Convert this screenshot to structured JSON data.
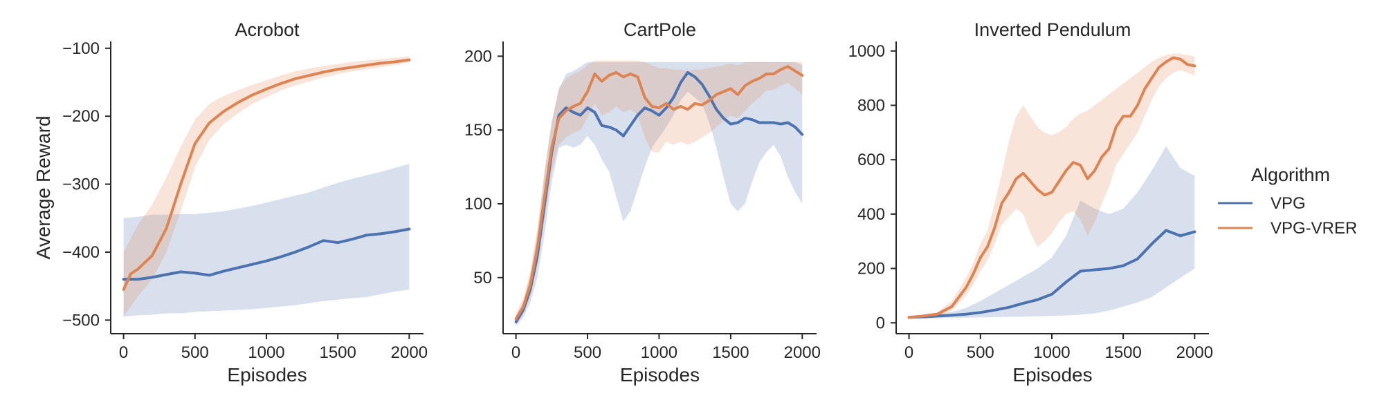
{
  "chart_data": [
    {
      "type": "line",
      "title": "Acrobot",
      "xlabel": "Episodes",
      "ylabel": "Average Reward",
      "xlim": [
        -90,
        2100
      ],
      "ylim": [
        -520,
        -90
      ],
      "xticks": [
        0,
        500,
        1000,
        1500,
        2000
      ],
      "yticks": [
        -500,
        -400,
        -300,
        -200,
        -100
      ],
      "xtick_labels": [
        "0",
        "500",
        "1000",
        "1500",
        "2000"
      ],
      "ytick_labels": [
        "−500",
        "−400",
        "−300",
        "−200",
        "−100"
      ],
      "series": [
        {
          "name": "VPG",
          "x": [
            0,
            100,
            200,
            300,
            400,
            500,
            600,
            700,
            800,
            900,
            1000,
            1100,
            1200,
            1300,
            1400,
            1500,
            1600,
            1700,
            1800,
            1900,
            2000
          ],
          "y": [
            -440,
            -440,
            -437,
            -433,
            -429,
            -431,
            -434,
            -428,
            -423,
            -418,
            -413,
            -407,
            -400,
            -392,
            -383,
            -386,
            -381,
            -375,
            -373,
            -370,
            -366
          ],
          "lower": [
            -495,
            -493,
            -492,
            -490,
            -490,
            -488,
            -487,
            -486,
            -485,
            -484,
            -482,
            -480,
            -478,
            -475,
            -472,
            -470,
            -468,
            -466,
            -462,
            -458,
            -455
          ],
          "upper": [
            -350,
            -348,
            -345,
            -345,
            -344,
            -344,
            -342,
            -340,
            -336,
            -332,
            -327,
            -322,
            -317,
            -312,
            -305,
            -298,
            -292,
            -287,
            -282,
            -276,
            -270
          ]
        },
        {
          "name": "VPG-VRER",
          "x": [
            0,
            50,
            100,
            200,
            300,
            400,
            500,
            600,
            700,
            800,
            900,
            1000,
            1100,
            1200,
            1300,
            1400,
            1500,
            1600,
            1700,
            1800,
            1900,
            2000
          ],
          "y": [
            -455,
            -432,
            -425,
            -405,
            -365,
            -300,
            -240,
            -210,
            -193,
            -180,
            -169,
            -160,
            -152,
            -145,
            -140,
            -135,
            -131,
            -128,
            -125,
            -122,
            -120,
            -117
          ],
          "lower": [
            -495,
            -480,
            -465,
            -440,
            -400,
            -340,
            -275,
            -235,
            -212,
            -196,
            -182,
            -172,
            -162,
            -155,
            -149,
            -143,
            -138,
            -134,
            -131,
            -128,
            -125,
            -121
          ],
          "upper": [
            -400,
            -380,
            -360,
            -330,
            -290,
            -245,
            -205,
            -182,
            -170,
            -162,
            -154,
            -147,
            -140,
            -134,
            -130,
            -126,
            -123,
            -120,
            -118,
            -116,
            -114,
            -112
          ]
        }
      ]
    },
    {
      "type": "line",
      "title": "CartPole",
      "xlabel": "Episodes",
      "ylabel": "",
      "xlim": [
        -90,
        2100
      ],
      "ylim": [
        12,
        210
      ],
      "xticks": [
        0,
        500,
        1000,
        1500,
        2000
      ],
      "yticks": [
        50,
        100,
        150,
        200
      ],
      "xtick_labels": [
        "0",
        "500",
        "1000",
        "1500",
        "2000"
      ],
      "ytick_labels": [
        "50",
        "100",
        "150",
        "200"
      ],
      "series": [
        {
          "name": "VPG",
          "x": [
            0,
            50,
            100,
            150,
            200,
            250,
            300,
            350,
            400,
            450,
            500,
            550,
            600,
            650,
            700,
            750,
            800,
            850,
            900,
            950,
            1000,
            1050,
            1100,
            1150,
            1200,
            1250,
            1300,
            1350,
            1400,
            1450,
            1500,
            1550,
            1600,
            1650,
            1700,
            1750,
            1800,
            1850,
            1900,
            1950,
            2000
          ],
          "y": [
            20,
            28,
            42,
            65,
            100,
            135,
            160,
            165,
            162,
            160,
            165,
            162,
            153,
            152,
            150,
            146,
            153,
            160,
            165,
            163,
            160,
            165,
            172,
            182,
            189,
            186,
            181,
            173,
            164,
            158,
            154,
            155,
            158,
            157,
            155,
            155,
            155,
            154,
            155,
            152,
            147
          ],
          "lower": [
            17,
            23,
            33,
            50,
            80,
            115,
            138,
            140,
            138,
            140,
            146,
            140,
            130,
            122,
            105,
            88,
            95,
            110,
            125,
            138,
            145,
            152,
            160,
            170,
            176,
            172,
            168,
            155,
            138,
            118,
            100,
            95,
            100,
            115,
            128,
            135,
            140,
            132,
            118,
            108,
            100
          ],
          "upper": [
            24,
            33,
            52,
            80,
            122,
            155,
            178,
            188,
            190,
            193,
            196,
            196,
            196,
            196,
            196,
            196,
            196,
            196,
            196,
            196,
            196,
            196,
            196,
            196,
            196,
            196,
            196,
            196,
            196,
            196,
            196,
            196,
            196,
            196,
            196,
            196,
            196,
            196,
            196,
            196,
            194
          ]
        },
        {
          "name": "VPG-VRER",
          "x": [
            0,
            50,
            100,
            150,
            200,
            250,
            300,
            350,
            400,
            450,
            500,
            550,
            600,
            650,
            700,
            750,
            800,
            850,
            900,
            950,
            1000,
            1050,
            1100,
            1150,
            1200,
            1250,
            1300,
            1350,
            1400,
            1450,
            1500,
            1550,
            1600,
            1650,
            1700,
            1750,
            1800,
            1850,
            1900,
            1950,
            2000
          ],
          "y": [
            22,
            30,
            45,
            70,
            105,
            138,
            158,
            163,
            166,
            168,
            176,
            188,
            183,
            187,
            189,
            186,
            188,
            186,
            172,
            166,
            165,
            168,
            164,
            166,
            164,
            168,
            167,
            170,
            174,
            176,
            178,
            174,
            180,
            183,
            185,
            188,
            188,
            191,
            193,
            190,
            187
          ],
          "lower": [
            18,
            25,
            37,
            58,
            90,
            122,
            140,
            145,
            148,
            150,
            158,
            168,
            160,
            162,
            166,
            162,
            164,
            160,
            145,
            135,
            135,
            142,
            140,
            142,
            140,
            142,
            145,
            148,
            152,
            156,
            160,
            158,
            163,
            168,
            172,
            177,
            177,
            180,
            182,
            178,
            174
          ],
          "upper": [
            26,
            36,
            54,
            84,
            122,
            156,
            178,
            185,
            188,
            190,
            194,
            197,
            197,
            197,
            197,
            197,
            197,
            197,
            196,
            194,
            192,
            192,
            191,
            191,
            190,
            191,
            191,
            192,
            193,
            194,
            195,
            194,
            196,
            196,
            196,
            196,
            196,
            196,
            196,
            196,
            196
          ]
        }
      ]
    },
    {
      "type": "line",
      "title": "Inverted Pendulum",
      "xlabel": "Episodes",
      "ylabel": "",
      "xlim": [
        -90,
        2100
      ],
      "ylim": [
        -40,
        1035
      ],
      "xticks": [
        0,
        500,
        1000,
        1500,
        2000
      ],
      "yticks": [
        0,
        200,
        400,
        600,
        800,
        1000
      ],
      "xtick_labels": [
        "0",
        "500",
        "1000",
        "1500",
        "2000"
      ],
      "ytick_labels": [
        "0",
        "200",
        "400",
        "600",
        "800",
        "1000"
      ],
      "series": [
        {
          "name": "VPG",
          "x": [
            0,
            100,
            200,
            300,
            400,
            500,
            600,
            700,
            800,
            900,
            1000,
            1100,
            1200,
            1300,
            1400,
            1500,
            1600,
            1700,
            1800,
            1900,
            2000
          ],
          "y": [
            20,
            22,
            25,
            28,
            32,
            38,
            47,
            57,
            72,
            85,
            105,
            150,
            190,
            195,
            200,
            210,
            235,
            290,
            340,
            320,
            335
          ],
          "lower": [
            15,
            16,
            17,
            18,
            19,
            20,
            21,
            22,
            23,
            24,
            25,
            27,
            30,
            35,
            45,
            60,
            75,
            95,
            130,
            165,
            200
          ],
          "upper": [
            25,
            28,
            33,
            40,
            55,
            80,
            110,
            140,
            170,
            200,
            240,
            320,
            450,
            420,
            400,
            420,
            480,
            560,
            650,
            570,
            540
          ]
        },
        {
          "name": "VPG-VRER",
          "x": [
            0,
            100,
            200,
            300,
            400,
            450,
            500,
            550,
            600,
            650,
            700,
            750,
            800,
            850,
            900,
            950,
            1000,
            1050,
            1100,
            1150,
            1200,
            1250,
            1300,
            1350,
            1400,
            1450,
            1500,
            1550,
            1600,
            1650,
            1700,
            1750,
            1800,
            1850,
            1900,
            1950,
            2000
          ],
          "y": [
            20,
            25,
            32,
            60,
            130,
            180,
            240,
            280,
            350,
            440,
            480,
            530,
            550,
            520,
            490,
            470,
            480,
            520,
            560,
            590,
            580,
            530,
            560,
            610,
            640,
            720,
            760,
            760,
            800,
            860,
            900,
            940,
            960,
            975,
            970,
            950,
            945
          ],
          "lower": [
            17,
            20,
            25,
            45,
            100,
            140,
            190,
            230,
            290,
            360,
            390,
            420,
            400,
            330,
            280,
            300,
            330,
            370,
            400,
            410,
            380,
            320,
            370,
            440,
            500,
            580,
            620,
            660,
            700,
            760,
            820,
            870,
            900,
            920,
            930,
            920,
            910
          ],
          "upper": [
            23,
            30,
            40,
            80,
            165,
            220,
            290,
            340,
            440,
            550,
            670,
            760,
            800,
            760,
            720,
            700,
            690,
            700,
            720,
            750,
            770,
            780,
            800,
            820,
            840,
            860,
            880,
            900,
            920,
            940,
            960,
            975,
            985,
            990,
            990,
            985,
            980
          ]
        }
      ]
    }
  ],
  "legend": {
    "title": "Algorithm",
    "items": [
      {
        "label": "VPG",
        "color": "#4c72b0"
      },
      {
        "label": "VPG-VRER",
        "color": "#dd8452"
      }
    ]
  },
  "colors": {
    "VPG": "#4c72b0",
    "VPG-VRER": "#dd8452",
    "axis": "#262626"
  }
}
